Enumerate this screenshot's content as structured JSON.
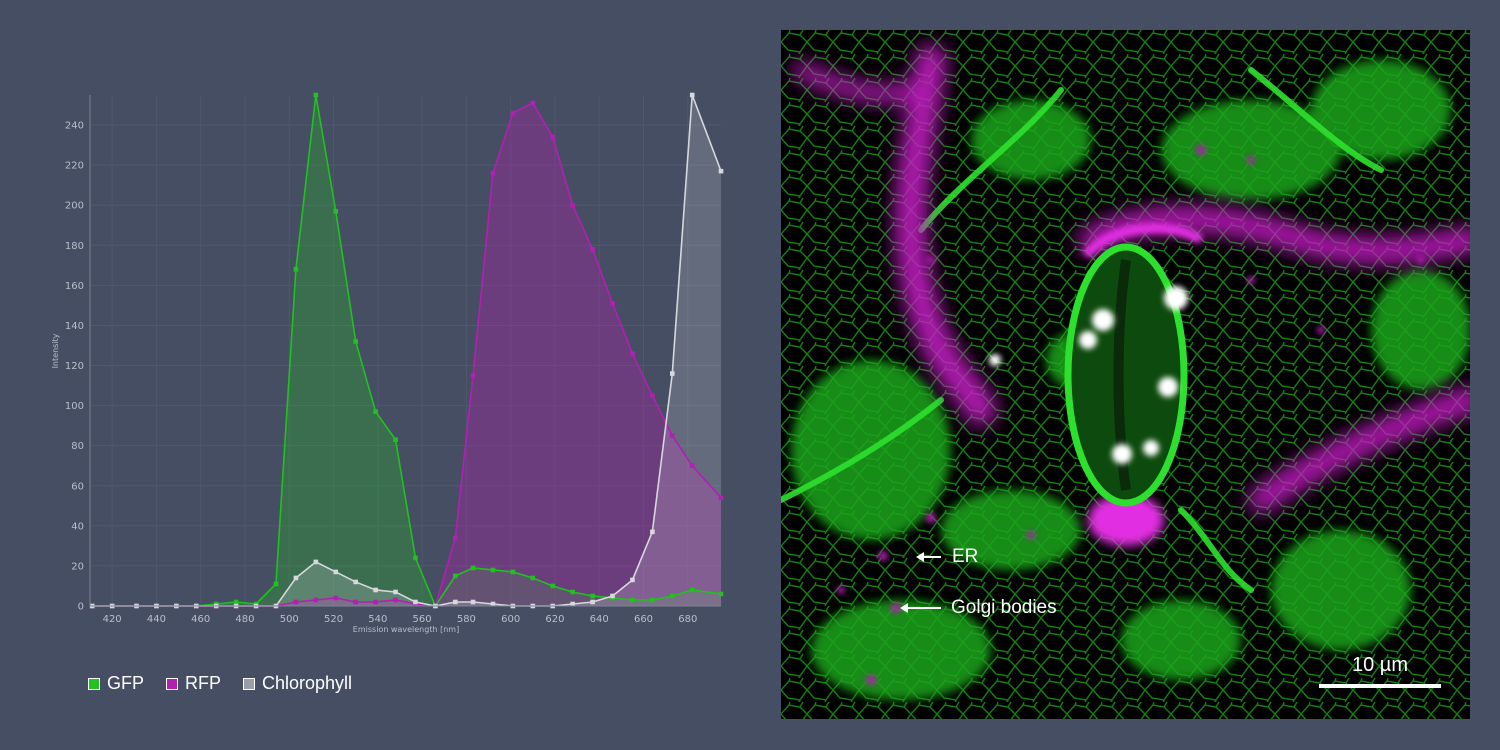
{
  "chart_data": {
    "type": "line",
    "filled": true,
    "xlabel": "Emission wavelength [nm]",
    "ylabel": "Intensity",
    "xlim": [
      410,
      695
    ],
    "ylim": [
      0,
      255
    ],
    "xticks": [
      420,
      440,
      460,
      480,
      500,
      520,
      540,
      560,
      580,
      600,
      620,
      640,
      660,
      680
    ],
    "yticks": [
      0,
      20,
      40,
      60,
      80,
      100,
      120,
      140,
      160,
      180,
      200,
      220,
      240
    ],
    "grid": true,
    "legend_position": "bottom-left",
    "series": [
      {
        "name": "GFP",
        "color": "#1fc21f",
        "x": [
          411,
          420,
          431,
          440,
          449,
          458,
          467,
          476,
          485,
          494,
          503,
          512,
          521,
          530,
          539,
          548,
          557,
          566,
          575,
          583,
          592,
          601,
          610,
          619,
          628,
          637,
          646,
          655,
          664,
          673,
          682,
          695
        ],
        "y": [
          0,
          0,
          0,
          0,
          0,
          0,
          1,
          2,
          1,
          11,
          168,
          255,
          197,
          132,
          97,
          83,
          24,
          0,
          15,
          19,
          18,
          17,
          14,
          10,
          7,
          5,
          4,
          3,
          3,
          5,
          8,
          6
        ]
      },
      {
        "name": "RFP",
        "color": "#b31fb3",
        "x": [
          411,
          420,
          431,
          440,
          449,
          458,
          467,
          476,
          485,
          494,
          503,
          512,
          521,
          530,
          539,
          548,
          557,
          566,
          575,
          583,
          592,
          601,
          610,
          619,
          628,
          637,
          646,
          655,
          664,
          673,
          682,
          695
        ],
        "y": [
          0,
          0,
          0,
          0,
          0,
          0,
          0,
          0,
          0,
          0,
          2,
          3,
          4,
          2,
          2,
          3,
          1,
          0,
          34,
          115,
          216,
          246,
          251,
          234,
          200,
          178,
          151,
          126,
          105,
          85,
          70,
          54
        ]
      },
      {
        "name": "Chlorophyll",
        "color": "#d6d8dd",
        "x": [
          411,
          420,
          431,
          440,
          449,
          458,
          467,
          476,
          485,
          494,
          503,
          512,
          521,
          530,
          539,
          548,
          557,
          566,
          575,
          583,
          592,
          601,
          610,
          619,
          628,
          637,
          646,
          655,
          664,
          673,
          682,
          695
        ],
        "y": [
          0,
          0,
          0,
          0,
          0,
          0,
          0,
          0,
          0,
          0,
          14,
          22,
          17,
          12,
          8,
          7,
          2,
          0,
          2,
          2,
          1,
          0,
          0,
          0,
          1,
          2,
          5,
          13,
          37,
          116,
          255,
          217
        ]
      }
    ]
  },
  "legend": {
    "items": [
      {
        "label": "GFP",
        "color": "#1fc21f"
      },
      {
        "label": "RFP",
        "color": "#b31fb3"
      },
      {
        "label": "Chlorophyll",
        "color": "#9a9ea8"
      }
    ]
  },
  "micrograph": {
    "annotations": {
      "er": "ER",
      "golgi": "Golgi bodies"
    },
    "scale_bar_label": "10 µm",
    "colors": {
      "er_green": "#1ed41e",
      "rfp_magenta": "#d21fd2",
      "chlorophyll_white": "#ffffff"
    }
  }
}
